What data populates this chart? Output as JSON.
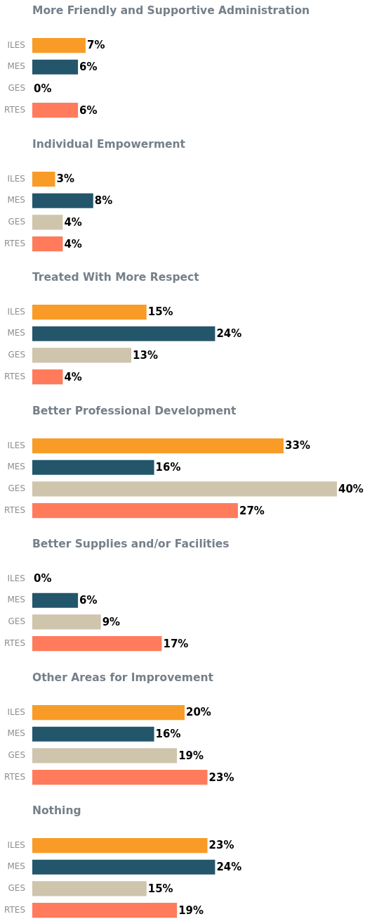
{
  "chart_data": [
    {
      "type": "bar",
      "orientation": "horizontal",
      "title": "More Friendly and Supportive Administration",
      "categories": [
        "ILES",
        "MES",
        "GES",
        "RTES"
      ],
      "values": [
        7,
        6,
        0,
        6
      ],
      "value_labels": [
        "7%",
        "6%",
        "0%",
        "6%"
      ],
      "colors": [
        "#f89c27",
        "#23566b",
        "#cfc5ad",
        "#ff7b5c"
      ],
      "tick_labels": "y"
    },
    {
      "type": "bar",
      "orientation": "horizontal",
      "title": "Individual Empowerment",
      "categories": [
        "ILES",
        "MES",
        "GES",
        "RTES"
      ],
      "values": [
        3,
        8,
        4,
        4
      ],
      "value_labels": [
        "3%",
        "8%",
        "4%",
        "4%"
      ],
      "colors": [
        "#f89c27",
        "#23566b",
        "#cfc5ad",
        "#ff7b5c"
      ],
      "tick_labels": "y"
    },
    {
      "type": "bar",
      "orientation": "horizontal",
      "title": "Treated With More Respect",
      "categories": [
        "ILES",
        "MES",
        "GES",
        "RTES"
      ],
      "values": [
        15,
        24,
        13,
        4
      ],
      "value_labels": [
        "15%",
        "24%",
        "13%",
        "4%"
      ],
      "colors": [
        "#f89c27",
        "#23566b",
        "#cfc5ad",
        "#ff7b5c"
      ],
      "tick_labels": "y"
    },
    {
      "type": "bar",
      "orientation": "horizontal",
      "title": "Better Professional Development",
      "categories": [
        "ILES",
        "MES",
        "GES",
        "RTES"
      ],
      "values": [
        33,
        16,
        40,
        27
      ],
      "value_labels": [
        "33%",
        "16%",
        "40%",
        "27%"
      ],
      "colors": [
        "#f89c27",
        "#23566b",
        "#cfc5ad",
        "#ff7b5c"
      ],
      "tick_labels": "y"
    },
    {
      "type": "bar",
      "orientation": "horizontal",
      "title": "Better Supplies and/or Facilities",
      "categories": [
        "ILES",
        "MES",
        "GES",
        "RTES"
      ],
      "values": [
        0,
        6,
        9,
        17
      ],
      "value_labels": [
        "0%",
        "6%",
        "9%",
        "17%"
      ],
      "colors": [
        "#f89c27",
        "#23566b",
        "#cfc5ad",
        "#ff7b5c"
      ],
      "tick_labels": "y"
    },
    {
      "type": "bar",
      "orientation": "horizontal",
      "title": "Other Areas for Improvement",
      "categories": [
        "ILES",
        "MES",
        "GES",
        "RTES"
      ],
      "values": [
        20,
        16,
        19,
        23
      ],
      "value_labels": [
        "20%",
        "16%",
        "19%",
        "23%"
      ],
      "colors": [
        "#f89c27",
        "#23566b",
        "#cfc5ad",
        "#ff7b5c"
      ],
      "tick_labels": "y"
    },
    {
      "type": "bar",
      "orientation": "horizontal",
      "title": "Nothing",
      "categories": [
        "ILES",
        "MES",
        "GES",
        "RTES"
      ],
      "values": [
        23,
        24,
        15,
        19
      ],
      "value_labels": [
        "23%",
        "24%",
        "15%",
        "19%"
      ],
      "colors": [
        "#f89c27",
        "#23566b",
        "#cfc5ad",
        "#ff7b5c"
      ],
      "tick_labels": "y"
    }
  ]
}
